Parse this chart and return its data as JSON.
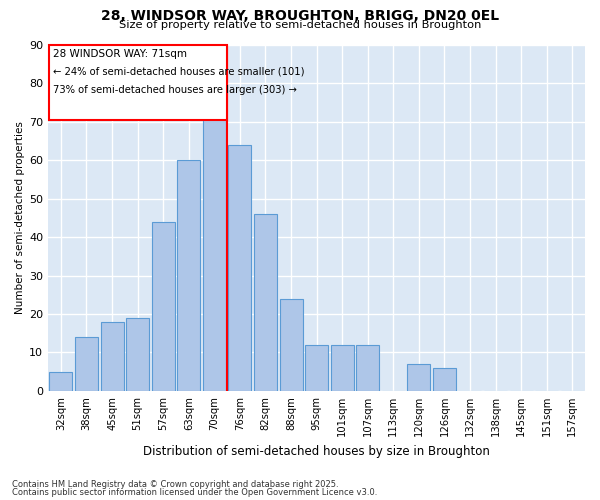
{
  "title1": "28, WINDSOR WAY, BROUGHTON, BRIGG, DN20 0EL",
  "title2": "Size of property relative to semi-detached houses in Broughton",
  "xlabel": "Distribution of semi-detached houses by size in Broughton",
  "ylabel": "Number of semi-detached properties",
  "categories": [
    "32sqm",
    "38sqm",
    "45sqm",
    "51sqm",
    "57sqm",
    "63sqm",
    "70sqm",
    "76sqm",
    "82sqm",
    "88sqm",
    "95sqm",
    "101sqm",
    "107sqm",
    "113sqm",
    "120sqm",
    "126sqm",
    "132sqm",
    "138sqm",
    "145sqm",
    "151sqm",
    "157sqm"
  ],
  "values": [
    5,
    14,
    18,
    19,
    44,
    60,
    76,
    64,
    46,
    24,
    12,
    12,
    12,
    0,
    7,
    6,
    0,
    0,
    0,
    0,
    0
  ],
  "bar_color": "#aec6e8",
  "bar_edge_color": "#5b9bd5",
  "vline_color": "red",
  "annotation_title": "28 WINDSOR WAY: 71sqm",
  "annotation_line1": "← 24% of semi-detached houses are smaller (101)",
  "annotation_line2": "73% of semi-detached houses are larger (303) →",
  "ylim": [
    0,
    90
  ],
  "yticks": [
    0,
    10,
    20,
    30,
    40,
    50,
    60,
    70,
    80,
    90
  ],
  "bg_color": "#dce8f5",
  "footnote1": "Contains HM Land Registry data © Crown copyright and database right 2025.",
  "footnote2": "Contains public sector information licensed under the Open Government Licence v3.0."
}
